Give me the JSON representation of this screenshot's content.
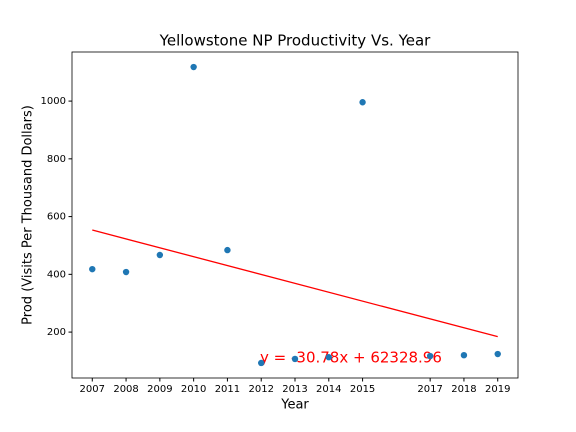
{
  "chart_data": {
    "type": "scatter",
    "title": "Yellowstone NP Productivity Vs. Year",
    "x_label": "Year",
    "y_label": "Prod (Visits Per Thousand Dollars)",
    "x": [
      2007,
      2008,
      2009,
      2010,
      2011,
      2012,
      2013,
      2014,
      2015,
      2017,
      2018,
      2019
    ],
    "values": [
      418,
      408,
      467,
      1118,
      484,
      93,
      107,
      113,
      996,
      117,
      120,
      124
    ],
    "color": "#1f77b4",
    "fit_line": {
      "x": [
        2007,
        2019
      ],
      "values": [
        553.5,
        184.1
      ],
      "color": "#ff0000"
    },
    "annotation": "y = -30.78x + 62328.96",
    "xlim": [
      2006.4,
      2019.6
    ],
    "xticks": [
      2007,
      2008,
      2009,
      2010,
      2011,
      2012,
      2013,
      2014,
      2015,
      2017,
      2018,
      2019
    ],
    "ylim": [
      41,
      1170
    ],
    "yticks": [
      200,
      400,
      600,
      800,
      1000
    ],
    "grid": false
  }
}
